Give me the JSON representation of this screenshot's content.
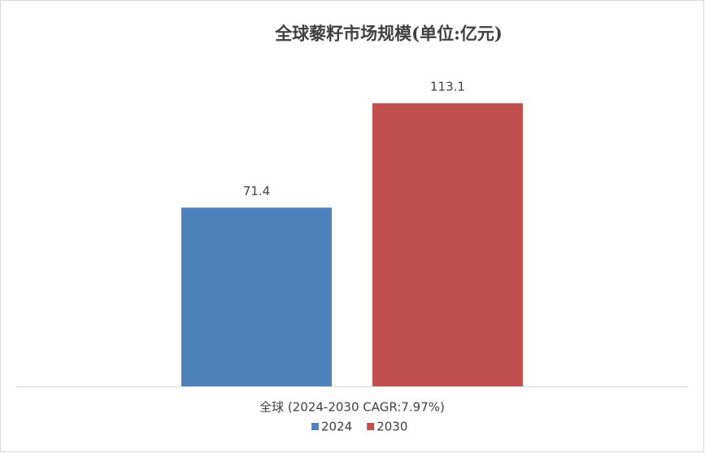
{
  "chart_data": {
    "type": "bar",
    "title": "全球藜籽市场规模(单位:亿元)",
    "categories": [
      "全球 (2024-2030 CAGR:7.97%)"
    ],
    "series": [
      {
        "name": "2024",
        "color": "#4f81bd",
        "values": [
          71.4
        ]
      },
      {
        "name": "2030",
        "color": "#c0504d",
        "values": [
          113.1
        ]
      }
    ],
    "legend": "bottom"
  }
}
